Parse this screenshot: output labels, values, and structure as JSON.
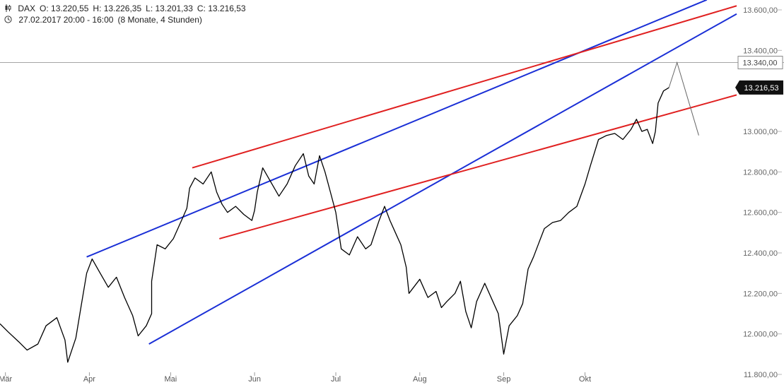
{
  "header": {
    "symbol_icon": "candlestick-icon",
    "symbol": "DAX",
    "open": "O: 13.220,55",
    "high": "H: 13.226,35",
    "low": "L: 13.201,33",
    "close": "C: 13.216,53",
    "clock_icon": "clock-icon",
    "date_range": "27.02.2017 20:00 - 16:00",
    "period": "(8 Monate, 4 Stunden)"
  },
  "chart_data": {
    "type": "line",
    "title": "",
    "xlabel": "",
    "ylabel": "",
    "ylim": [
      11780,
      13650
    ],
    "y_ticks": [
      {
        "value": 11800,
        "label": "11.800,00"
      },
      {
        "value": 12000,
        "label": "12.000,00"
      },
      {
        "value": 12200,
        "label": "12.200,00"
      },
      {
        "value": 12400,
        "label": "12.400,00"
      },
      {
        "value": 12600,
        "label": "12.600,00"
      },
      {
        "value": 12800,
        "label": "12.800,00"
      },
      {
        "value": 13000,
        "label": "13.000,00"
      },
      {
        "value": 13400,
        "label": "13.400,00"
      },
      {
        "value": 13600,
        "label": "13.600,00"
      }
    ],
    "x_ticks": [
      {
        "date": "2017-03-01",
        "label": "Mär"
      },
      {
        "date": "2017-04-01",
        "label": "Apr"
      },
      {
        "date": "2017-05-01",
        "label": "Mai"
      },
      {
        "date": "2017-06-01",
        "label": "Jun"
      },
      {
        "date": "2017-07-01",
        "label": "Jul"
      },
      {
        "date": "2017-08-01",
        "label": "Aug"
      },
      {
        "date": "2017-09-01",
        "label": "Sep"
      },
      {
        "date": "2017-10-01",
        "label": "Okt"
      }
    ],
    "xlim": [
      "2017-02-27",
      "2017-11-26"
    ],
    "series": [
      {
        "color": "#000000",
        "points": [
          [
            "2017-02-27",
            12050
          ],
          [
            "2017-03-02",
            12010
          ],
          [
            "2017-03-06",
            11960
          ],
          [
            "2017-03-09",
            11920
          ],
          [
            "2017-03-13",
            11950
          ],
          [
            "2017-03-16",
            12040
          ],
          [
            "2017-03-20",
            12080
          ],
          [
            "2017-03-23",
            11970
          ],
          [
            "2017-03-24",
            11860
          ],
          [
            "2017-03-27",
            11980
          ],
          [
            "2017-03-29",
            12140
          ],
          [
            "2017-03-31",
            12300
          ],
          [
            "2017-04-02",
            12370
          ],
          [
            "2017-04-05",
            12300
          ],
          [
            "2017-04-08",
            12230
          ],
          [
            "2017-04-11",
            12280
          ],
          [
            "2017-04-14",
            12180
          ],
          [
            "2017-04-17",
            12090
          ],
          [
            "2017-04-19",
            11990
          ],
          [
            "2017-04-22",
            12040
          ],
          [
            "2017-04-24",
            12100
          ],
          [
            "2017-04-24",
            12260
          ],
          [
            "2017-04-26",
            12440
          ],
          [
            "2017-04-29",
            12420
          ],
          [
            "2017-05-02",
            12470
          ],
          [
            "2017-05-05",
            12560
          ],
          [
            "2017-05-07",
            12620
          ],
          [
            "2017-05-08",
            12720
          ],
          [
            "2017-05-10",
            12770
          ],
          [
            "2017-05-13",
            12740
          ],
          [
            "2017-05-16",
            12800
          ],
          [
            "2017-05-18",
            12700
          ],
          [
            "2017-05-20",
            12640
          ],
          [
            "2017-05-22",
            12600
          ],
          [
            "2017-05-25",
            12630
          ],
          [
            "2017-05-28",
            12590
          ],
          [
            "2017-05-31",
            12560
          ],
          [
            "2017-06-01",
            12610
          ],
          [
            "2017-06-02",
            12700
          ],
          [
            "2017-06-04",
            12820
          ],
          [
            "2017-06-07",
            12750
          ],
          [
            "2017-06-10",
            12680
          ],
          [
            "2017-06-13",
            12740
          ],
          [
            "2017-06-16",
            12830
          ],
          [
            "2017-06-19",
            12890
          ],
          [
            "2017-06-21",
            12780
          ],
          [
            "2017-06-23",
            12740
          ],
          [
            "2017-06-25",
            12880
          ],
          [
            "2017-06-27",
            12800
          ],
          [
            "2017-06-29",
            12700
          ],
          [
            "2017-07-01",
            12600
          ],
          [
            "2017-07-03",
            12420
          ],
          [
            "2017-07-06",
            12390
          ],
          [
            "2017-07-09",
            12480
          ],
          [
            "2017-07-12",
            12420
          ],
          [
            "2017-07-14",
            12440
          ],
          [
            "2017-07-17",
            12560
          ],
          [
            "2017-07-19",
            12630
          ],
          [
            "2017-07-21",
            12560
          ],
          [
            "2017-07-23",
            12500
          ],
          [
            "2017-07-25",
            12440
          ],
          [
            "2017-07-27",
            12330
          ],
          [
            "2017-07-28",
            12200
          ],
          [
            "2017-08-01",
            12270
          ],
          [
            "2017-08-04",
            12180
          ],
          [
            "2017-08-07",
            12210
          ],
          [
            "2017-08-09",
            12130
          ],
          [
            "2017-08-11",
            12160
          ],
          [
            "2017-08-14",
            12200
          ],
          [
            "2017-08-16",
            12260
          ],
          [
            "2017-08-18",
            12110
          ],
          [
            "2017-08-20",
            12030
          ],
          [
            "2017-08-22",
            12160
          ],
          [
            "2017-08-25",
            12250
          ],
          [
            "2017-08-28",
            12160
          ],
          [
            "2017-08-30",
            12100
          ],
          [
            "2017-09-01",
            11900
          ],
          [
            "2017-09-03",
            12040
          ],
          [
            "2017-09-06",
            12090
          ],
          [
            "2017-09-08",
            12150
          ],
          [
            "2017-09-10",
            12320
          ],
          [
            "2017-09-12",
            12380
          ],
          [
            "2017-09-14",
            12450
          ],
          [
            "2017-09-16",
            12520
          ],
          [
            "2017-09-19",
            12550
          ],
          [
            "2017-09-22",
            12560
          ],
          [
            "2017-09-25",
            12600
          ],
          [
            "2017-09-28",
            12630
          ],
          [
            "2017-10-01",
            12740
          ],
          [
            "2017-10-03",
            12830
          ],
          [
            "2017-10-06",
            12960
          ],
          [
            "2017-10-09",
            12980
          ],
          [
            "2017-10-12",
            12990
          ],
          [
            "2017-10-15",
            12960
          ],
          [
            "2017-10-18",
            13010
          ],
          [
            "2017-10-20",
            13060
          ],
          [
            "2017-10-22",
            13000
          ],
          [
            "2017-10-24",
            13010
          ],
          [
            "2017-10-26",
            12940
          ],
          [
            "2017-10-27",
            13000
          ],
          [
            "2017-10-28",
            13140
          ],
          [
            "2017-10-30",
            13200
          ],
          [
            "2017-11-01",
            13216
          ]
        ]
      }
    ],
    "trend_lines": [
      {
        "color": "#1a2fd6",
        "from": [
          "2017-03-31",
          12380
        ],
        "to": [
          "2017-11-15",
          13650
        ]
      },
      {
        "color": "#1a2fd6",
        "from": [
          "2017-04-23",
          11950
        ],
        "to": [
          "2017-11-26",
          13580
        ]
      },
      {
        "color": "#e02020",
        "from": [
          "2017-05-09",
          12820
        ],
        "to": [
          "2017-11-26",
          13620
        ]
      },
      {
        "color": "#e02020",
        "from": [
          "2017-05-19",
          12470
        ],
        "to": [
          "2017-11-26",
          13180
        ]
      }
    ],
    "projection": {
      "color": "#666666",
      "points": [
        [
          "2017-11-01",
          13216
        ],
        [
          "2017-11-04",
          13340
        ],
        [
          "2017-11-12",
          12980
        ]
      ]
    },
    "h_line": {
      "value": 13340,
      "label": "13.340,00",
      "color": "#888888"
    },
    "last_price": {
      "value": 13216.53,
      "label": "13.216,53"
    }
  }
}
